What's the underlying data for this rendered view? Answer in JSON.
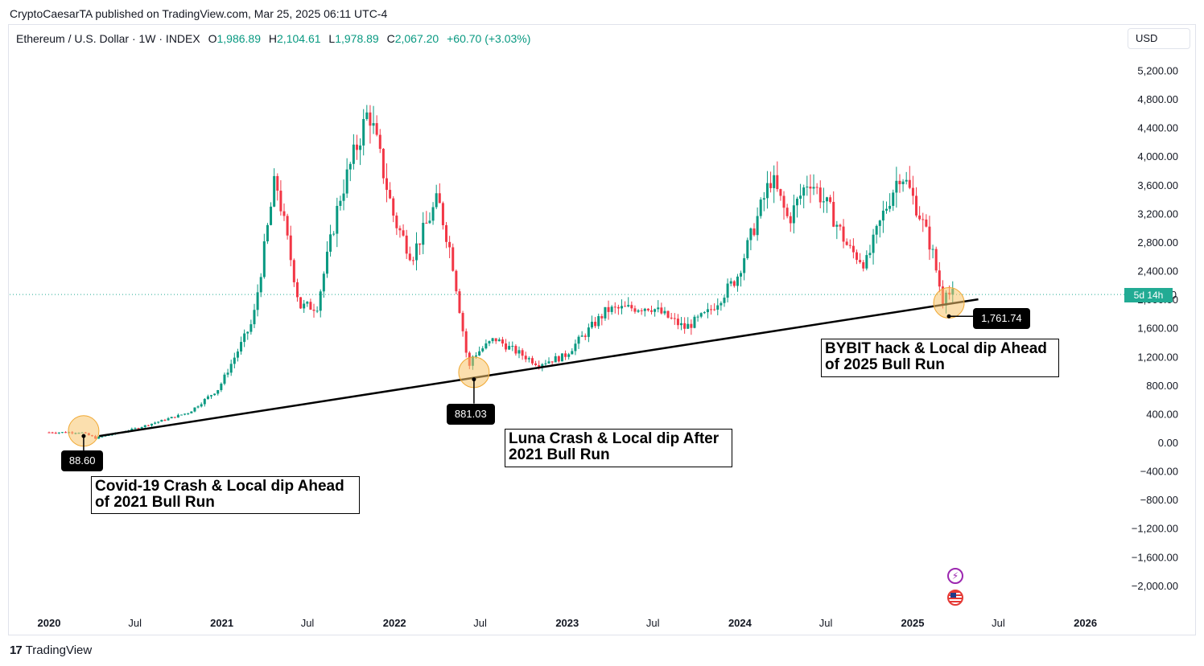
{
  "attribution": "CryptoCaesarTA published on TradingView.com, Mar 25, 2025 06:11 UTC-4",
  "legend": {
    "symbol": "Ethereum / U.S. Dollar · 1W · INDEX",
    "open_label": "O",
    "open": "1,986.89",
    "high_label": "H",
    "high": "2,104.61",
    "low_label": "L",
    "low": "1,978.89",
    "close_label": "C",
    "close": "2,067.20",
    "change": "+60.70 (+3.03%)"
  },
  "currency_button": "USD",
  "countdown": "5d 14h",
  "colors": {
    "up": "#089981",
    "down": "#f23645",
    "trendline": "#000000",
    "marker": "#f7c56b",
    "last_price_line": "#22ab94"
  },
  "icons": [
    "lightning-icon",
    "us-flag-icon"
  ],
  "footer": {
    "logo_mark": "17",
    "logo_text": "TradingView"
  },
  "chart_data": {
    "type": "candlestick",
    "timeframe": "1W",
    "y_axis": {
      "ticks": [
        5200,
        4800,
        4400,
        4000,
        3600,
        3200,
        2800,
        2400,
        2000,
        1600,
        1200,
        800,
        400,
        0,
        -400,
        -800,
        -1200,
        -1600,
        -2000
      ],
      "tick_labels": [
        "5,200.00",
        "4,800.00",
        "4,400.00",
        "4,000.00",
        "3,600.00",
        "3,200.00",
        "2,800.00",
        "2,400.00",
        "2,000.00",
        "1,600.00",
        "1,200.00",
        "800.00",
        "400.00",
        "0.00",
        "−400.00",
        "−800.00",
        "−1,200.00",
        "−1,600.00",
        "−2,000.00"
      ],
      "range": [
        -2300,
        5400
      ],
      "last_price": 2067.2
    },
    "x_axis": {
      "ticks": [
        {
          "date": "2020-01-01",
          "label": "2020",
          "bold": true
        },
        {
          "date": "2020-07-01",
          "label": "Jul",
          "bold": false
        },
        {
          "date": "2021-01-01",
          "label": "2021",
          "bold": true
        },
        {
          "date": "2021-07-01",
          "label": "Jul",
          "bold": false
        },
        {
          "date": "2022-01-01",
          "label": "2022",
          "bold": true
        },
        {
          "date": "2022-07-01",
          "label": "Jul",
          "bold": false
        },
        {
          "date": "2023-01-01",
          "label": "2023",
          "bold": true
        },
        {
          "date": "2023-07-01",
          "label": "Jul",
          "bold": false
        },
        {
          "date": "2024-01-01",
          "label": "2024",
          "bold": true
        },
        {
          "date": "2024-07-01",
          "label": "Jul",
          "bold": false
        },
        {
          "date": "2025-01-01",
          "label": "2025",
          "bold": true
        },
        {
          "date": "2025-07-01",
          "label": "Jul",
          "bold": false
        },
        {
          "date": "2026-01-01",
          "label": "2026",
          "bold": true
        }
      ]
    },
    "key_points": [
      {
        "x": "2020-03-16",
        "y": 140,
        "level": 88.6
      },
      {
        "x": 2022.46,
        "y": 1180,
        "level": 1000
      },
      {
        "x": 2025.21,
        "y": 2200,
        "level": 2000
      },
      {
        "x": 2020.29,
        "y": 60
      },
      {
        "x": 2020.5,
        "y": 180
      },
      {
        "x": 2020.83,
        "y": 420
      },
      {
        "x": 2021.0,
        "y": 750
      },
      {
        "x": 2021.2,
        "y": 1700
      },
      {
        "x": 2021.33,
        "y": 3700
      },
      {
        "x": 2021.47,
        "y": 1900
      },
      {
        "x": 2021.57,
        "y": 1900
      },
      {
        "x": 2021.7,
        "y": 3400
      },
      {
        "x": 2021.87,
        "y": 4650
      },
      {
        "x": 2022.02,
        "y": 3100
      },
      {
        "x": 2022.12,
        "y": 2600
      },
      {
        "x": 2022.27,
        "y": 3400
      },
      {
        "x": 2022.35,
        "y": 2600
      },
      {
        "x": 2022.45,
        "y": 1000
      },
      {
        "x": 2022.6,
        "y": 1450
      },
      {
        "x": 2022.7,
        "y": 1300
      },
      {
        "x": 2022.85,
        "y": 1100
      },
      {
        "x": 2023.0,
        "y": 1200
      },
      {
        "x": 2023.25,
        "y": 1850
      },
      {
        "x": 2023.5,
        "y": 1900
      },
      {
        "x": 2023.7,
        "y": 1600
      },
      {
        "x": 2023.83,
        "y": 1800
      },
      {
        "x": 2024.0,
        "y": 2300
      },
      {
        "x": 2024.2,
        "y": 3700
      },
      {
        "x": 2024.3,
        "y": 3100
      },
      {
        "x": 2024.42,
        "y": 3700
      },
      {
        "x": 2024.55,
        "y": 3200
      },
      {
        "x": 2024.65,
        "y": 2700
      },
      {
        "x": 2024.75,
        "y": 2500
      },
      {
        "x": 2024.85,
        "y": 3200
      },
      {
        "x": 2024.95,
        "y": 3800
      },
      {
        "x": 2025.05,
        "y": 3250
      },
      {
        "x": 2025.13,
        "y": 2700
      },
      {
        "x": 2025.2,
        "y": 1900
      },
      {
        "x": 2025.23,
        "y": 2070
      }
    ],
    "trendline": {
      "from": {
        "x": 2020.29,
        "y": 88.6
      },
      "to": {
        "x": 2025.38,
        "y": 2000
      }
    },
    "price_labels": [
      {
        "x": 2020.2,
        "y": 88.6,
        "label": "88.60"
      },
      {
        "x": 2022.46,
        "y": 881.03,
        "label": "881.03"
      },
      {
        "x": 2025.21,
        "y": 1761.74,
        "label": "1,761.74"
      }
    ],
    "annotations": [
      {
        "text": "Covid-19 Crash & Local dip Ahead\nof 2021 Bull Run"
      },
      {
        "text": "Luna Crash & Local dip After\n2021 Bull Run"
      },
      {
        "text": "BYBIT hack & Local dip Ahead\nof 2025 Bull Run"
      }
    ]
  }
}
